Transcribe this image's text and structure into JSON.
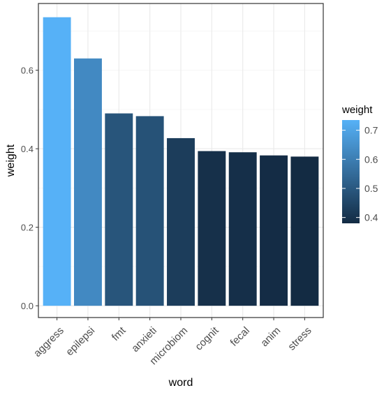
{
  "chart_data": {
    "type": "bar",
    "xlabel": "word",
    "ylabel": "weight",
    "categories": [
      "aggress",
      "epilepsi",
      "fmt",
      "anxieti",
      "microbiom",
      "cognit",
      "fecal",
      "anim",
      "stress"
    ],
    "values": [
      0.735,
      0.63,
      0.49,
      0.483,
      0.427,
      0.394,
      0.391,
      0.383,
      0.38
    ],
    "ylim": [
      -0.03,
      0.77
    ],
    "yticks": [
      0.0,
      0.2,
      0.4,
      0.6
    ],
    "ytick_labels": [
      "0.0",
      "0.2",
      "0.4",
      "0.6"
    ],
    "grid": true,
    "legend": {
      "title": "weight",
      "position": "right",
      "type": "colorbar",
      "ticks": [
        0.4,
        0.5,
        0.6,
        0.7
      ],
      "tick_labels": [
        "0.4",
        "0.5",
        "0.6",
        "0.7"
      ],
      "range": [
        0.38,
        0.735
      ]
    },
    "color_scale": {
      "low": "#132b43",
      "high": "#56b1f7"
    }
  }
}
